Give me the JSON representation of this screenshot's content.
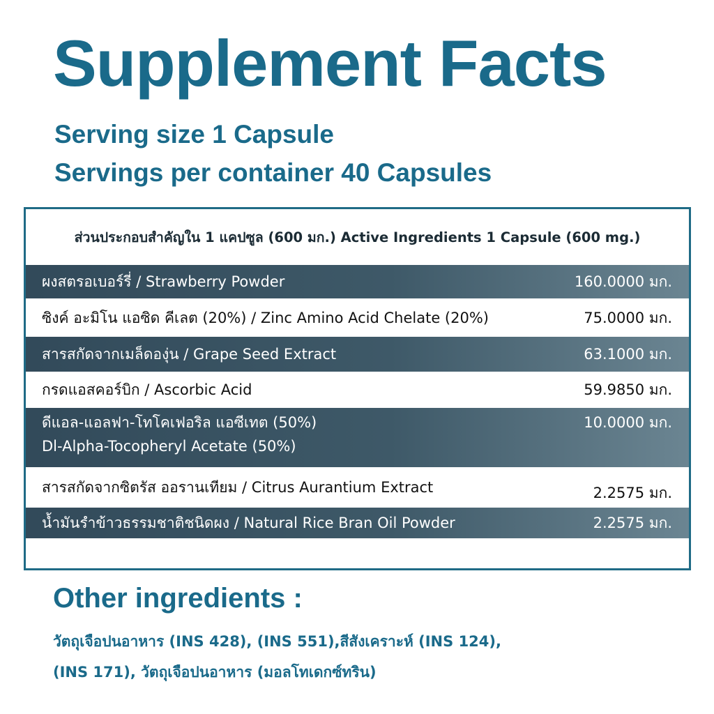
{
  "title": "Supplement Facts",
  "serving_size": "Serving size 1 Capsule",
  "servings_per_container": "Servings per container 40 Capsules",
  "facts": {
    "header": "ส่วนประกอบสำคัญใน 1 แคปซูล (600 มก.) Active Ingredients 1 Capsule (600 mg.)",
    "rows": [
      {
        "name": "ผงสตรอเบอร์รี่ / Strawberry Powder",
        "amount": "160.0000 มก."
      },
      {
        "name": "ซิงค์ อะมิโน แอซิด คีเลต (20%) / Zinc Amino Acid Chelate (20%)",
        "amount": "75.0000 มก."
      },
      {
        "name": "สารสกัดจากเมล็ดองุ่น / Grape Seed Extract",
        "amount": "63.1000 มก."
      },
      {
        "name": "กรดแอสคอร์บิก / Ascorbic Acid",
        "amount": "59.9850 มก."
      },
      {
        "name_line1": "ดีแอล-แอลฟา-โทโคเฟอริล แอซีเทต (50%)",
        "name_line2": "Dl-Alpha-Tocopheryl Acetate (50%)",
        "amount": "10.0000 มก."
      },
      {
        "name": "สารสกัดจากซิตรัส ออรานเทียม / Citrus Aurantium Extract",
        "amount": "2.2575 มก."
      },
      {
        "name": "น้ำมันรำข้าวธรรมชาติชนิดผง / Natural Rice Bran Oil Powder",
        "amount": "2.2575 มก."
      }
    ]
  },
  "other": {
    "title": "Other ingredients :",
    "line1": "วัตถุเจือปนอาหาร (INS 428), (INS 551),สีสังเคราะห์ (INS 124),",
    "line2": "(INS 171), วัตถุเจือปนอาหาร (มอลโทเดกซ์ทริน)"
  }
}
